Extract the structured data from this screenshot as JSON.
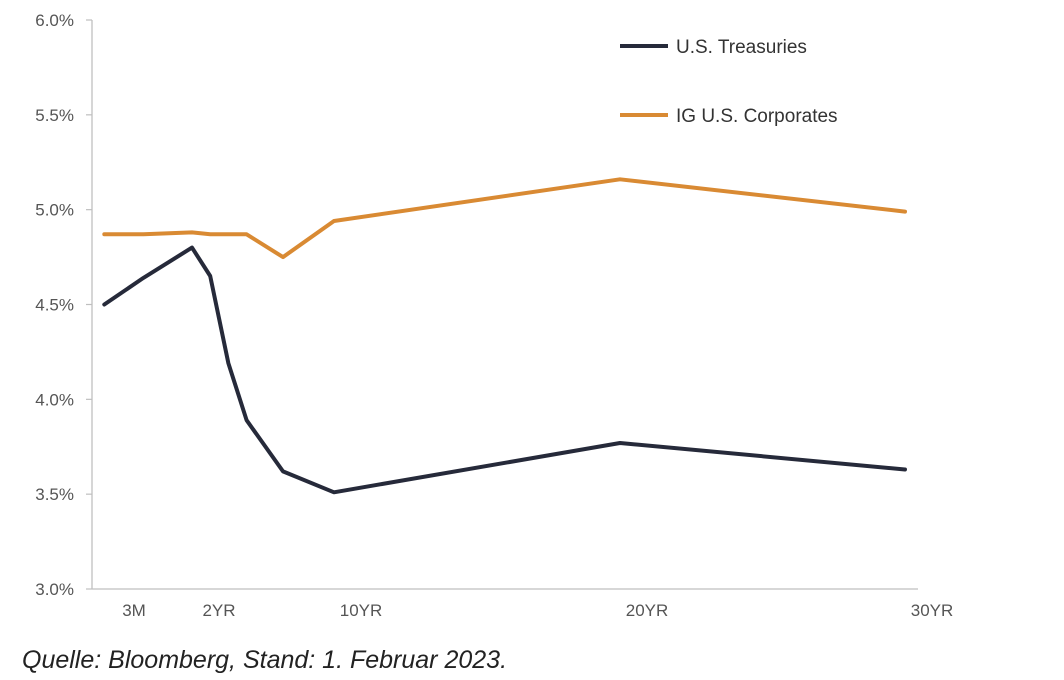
{
  "source_note": "Quelle: Bloomberg, Stand: 1. Februar 2023.",
  "chart_data": {
    "type": "line",
    "title": "",
    "xlabel": "",
    "ylabel": "",
    "y_unit": "%",
    "ylim": [
      3.0,
      6.0
    ],
    "y_ticks": [
      3.0,
      3.5,
      4.0,
      4.5,
      5.0,
      5.5,
      6.0
    ],
    "y_tick_labels": [
      "3.0%",
      "3.5%",
      "4.0%",
      "4.5%",
      "5.0%",
      "5.5%",
      "6.0%"
    ],
    "x_unit": "years to maturity",
    "xlim": [
      0,
      30
    ],
    "x_ticks": [
      0.25,
      2,
      10,
      20,
      30
    ],
    "x_tick_labels": [
      "3M",
      "2YR",
      "10YR",
      "20YR",
      "30YR"
    ],
    "grid": false,
    "legend_position": "top-right",
    "series": [
      {
        "name": "U.S. Treasuries",
        "color": "#262a3a",
        "x": [
          0.08,
          1.0,
          2.0,
          3.0,
          4.0,
          5.0,
          7.0,
          10.0,
          20.0,
          30.0
        ],
        "y": [
          4.5,
          4.64,
          4.8,
          4.65,
          4.19,
          3.89,
          3.62,
          3.51,
          3.77,
          3.63
        ]
      },
      {
        "name": "IG U.S. Corporates",
        "color": "#d98a33",
        "x": [
          0.08,
          1.0,
          2.0,
          3.0,
          5.0,
          7.0,
          10.0,
          20.0,
          30.0
        ],
        "y": [
          4.87,
          4.87,
          4.88,
          4.87,
          4.87,
          4.75,
          4.94,
          5.16,
          4.99
        ]
      }
    ]
  }
}
